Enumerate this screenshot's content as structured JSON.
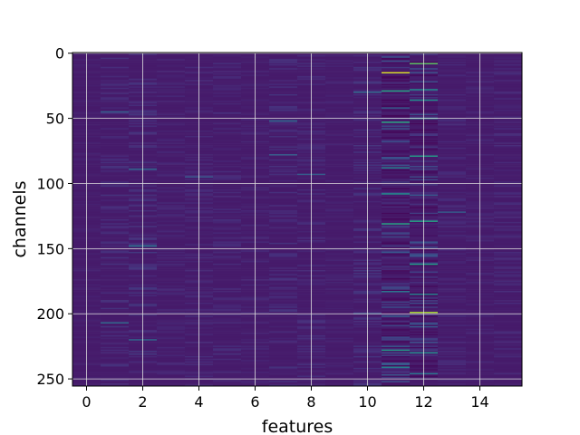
{
  "chart_data": {
    "type": "heatmap",
    "title": "",
    "xlabel": "features",
    "ylabel": "channels",
    "n_columns": 16,
    "n_rows": 256,
    "xlim": [
      -0.5,
      15.5
    ],
    "ylim": [
      255.5,
      -0.5
    ],
    "y_inverted": true,
    "x_ticks": [
      0,
      2,
      4,
      6,
      8,
      10,
      12,
      14
    ],
    "y_ticks": [
      0,
      50,
      100,
      150,
      200,
      250
    ],
    "x_tick_labels": [
      "0",
      "2",
      "4",
      "6",
      "8",
      "10",
      "12",
      "14"
    ],
    "y_tick_labels": [
      "0",
      "50",
      "100",
      "150",
      "200",
      "250"
    ],
    "grid": true,
    "colormap": "viridis",
    "background_level": 0.08,
    "highlights": [
      {
        "col": 11,
        "row": 15,
        "value": 0.95
      },
      {
        "col": 12,
        "row": 199,
        "value": 0.88
      },
      {
        "col": 12,
        "row": 8,
        "value": 0.75
      },
      {
        "col": 11,
        "row": 29,
        "value": 0.6
      },
      {
        "col": 11,
        "row": 53,
        "value": 0.62
      },
      {
        "col": 11,
        "row": 131,
        "value": 0.6
      },
      {
        "col": 11,
        "row": 228,
        "value": 0.55
      },
      {
        "col": 11,
        "row": 108,
        "value": 0.5
      },
      {
        "col": 11,
        "row": 88,
        "value": 0.45
      },
      {
        "col": 11,
        "row": 241,
        "value": 0.45
      },
      {
        "col": 11,
        "row": 183,
        "value": 0.4
      },
      {
        "col": 12,
        "row": 28,
        "value": 0.5
      },
      {
        "col": 12,
        "row": 36,
        "value": 0.5
      },
      {
        "col": 12,
        "row": 50,
        "value": 0.55
      },
      {
        "col": 12,
        "row": 79,
        "value": 0.55
      },
      {
        "col": 12,
        "row": 129,
        "value": 0.6
      },
      {
        "col": 12,
        "row": 162,
        "value": 0.55
      },
      {
        "col": 12,
        "row": 185,
        "value": 0.45
      },
      {
        "col": 12,
        "row": 230,
        "value": 0.5
      },
      {
        "col": 12,
        "row": 246,
        "value": 0.4
      },
      {
        "col": 10,
        "row": 30,
        "value": 0.35
      },
      {
        "col": 10,
        "row": 200,
        "value": 0.3
      },
      {
        "col": 2,
        "row": 148,
        "value": 0.4
      },
      {
        "col": 2,
        "row": 89,
        "value": 0.35
      },
      {
        "col": 2,
        "row": 220,
        "value": 0.35
      },
      {
        "col": 1,
        "row": 207,
        "value": 0.35
      },
      {
        "col": 1,
        "row": 45,
        "value": 0.3
      },
      {
        "col": 7,
        "row": 52,
        "value": 0.35
      },
      {
        "col": 7,
        "row": 78,
        "value": 0.3
      },
      {
        "col": 8,
        "row": 93,
        "value": 0.3
      },
      {
        "col": 4,
        "row": 95,
        "value": 0.28
      },
      {
        "col": 13,
        "row": 122,
        "value": 0.3
      }
    ],
    "column_noise": [
      0.02,
      0.07,
      0.09,
      0.04,
      0.05,
      0.06,
      0.04,
      0.07,
      0.06,
      0.03,
      0.08,
      0.22,
      0.2,
      0.05,
      0.04,
      0.05
    ]
  }
}
